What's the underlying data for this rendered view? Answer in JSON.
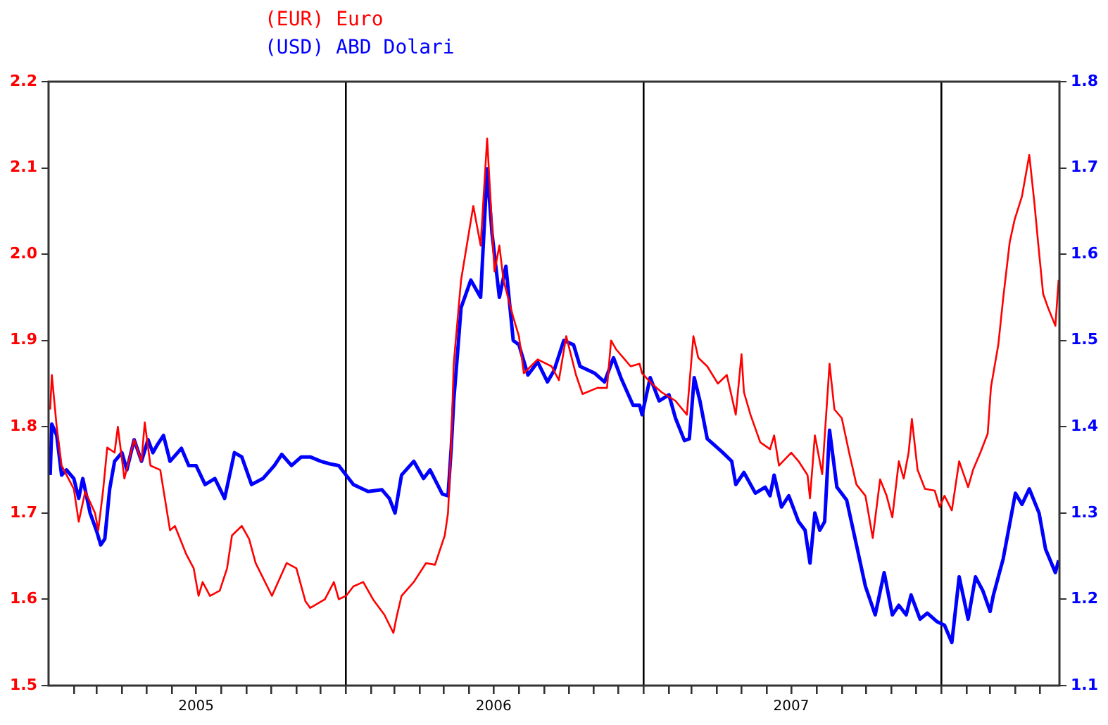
{
  "chart_data": {
    "type": "line",
    "legend": "top",
    "grid": "x",
    "marker": "none",
    "line_style": "solid",
    "xlim": [
      "2005-01-01",
      "2008-05-25"
    ],
    "xticks": [
      {
        "value": "2005-02",
        "label": null
      },
      {
        "value": "2005-03",
        "label": null
      },
      {
        "value": "2005-04",
        "label": null
      },
      {
        "value": "2005-05",
        "label": null
      },
      {
        "value": "2005-06",
        "label": null
      },
      {
        "value": "2005-07",
        "label": "2005"
      },
      {
        "value": "2005-08",
        "label": null
      },
      {
        "value": "2005-09",
        "label": null
      },
      {
        "value": "2005-10",
        "label": null
      },
      {
        "value": "2005-11",
        "label": null
      },
      {
        "value": "2005-12",
        "label": null
      },
      {
        "value": "2006-01",
        "label": null
      },
      {
        "value": "2006-02",
        "label": null
      },
      {
        "value": "2006-03",
        "label": null
      },
      {
        "value": "2006-04",
        "label": null
      },
      {
        "value": "2006-05",
        "label": null
      },
      {
        "value": "2006-06",
        "label": null
      },
      {
        "value": "2006-07",
        "label": "2006"
      },
      {
        "value": "2006-08",
        "label": null
      },
      {
        "value": "2006-09",
        "label": null
      },
      {
        "value": "2006-10",
        "label": null
      },
      {
        "value": "2006-11",
        "label": null
      },
      {
        "value": "2006-12",
        "label": null
      },
      {
        "value": "2007-01",
        "label": null
      },
      {
        "value": "2007-02",
        "label": null
      },
      {
        "value": "2007-03",
        "label": null
      },
      {
        "value": "2007-04",
        "label": null
      },
      {
        "value": "2007-05",
        "label": null
      },
      {
        "value": "2007-06",
        "label": null
      },
      {
        "value": "2007-07",
        "label": "2007"
      },
      {
        "value": "2007-08",
        "label": null
      },
      {
        "value": "2007-09",
        "label": null
      },
      {
        "value": "2007-10",
        "label": null
      },
      {
        "value": "2007-11",
        "label": null
      },
      {
        "value": "2007-12",
        "label": null
      },
      {
        "value": "2008-01",
        "label": null
      },
      {
        "value": "2008-02",
        "label": null
      },
      {
        "value": "2008-03",
        "label": null
      },
      {
        "value": "2008-04",
        "label": null
      },
      {
        "value": "2008-05",
        "label": null
      }
    ],
    "ylim": [
      1.5,
      2.2
    ],
    "yticks": [
      1.5,
      1.6,
      1.7,
      1.8,
      1.9,
      {
        "value": 2,
        "label": "2.0"
      },
      2.1,
      2.2
    ],
    "y2lim": [
      1.1,
      1.8
    ],
    "y2ticks": [
      1.1,
      1.2,
      1.3,
      1.4,
      1.5,
      1.6,
      1.7,
      1.8
    ],
    "series": [
      {
        "name": "(EUR) Euro",
        "color": "#ff0000",
        "x": [
          "2005-01-03",
          "2005-01-05",
          "2005-01-11",
          "2005-01-17",
          "2005-02-01",
          "2005-02-07",
          "2005-02-15",
          "2005-02-27",
          "2005-03-03",
          "2005-03-09",
          "2005-03-14",
          "2005-03-23",
          "2005-03-27",
          "2005-04-04",
          "2005-04-16",
          "2005-04-25",
          "2005-04-29",
          "2005-05-06",
          "2005-05-18",
          "2005-05-30",
          "2005-06-05",
          "2005-06-19",
          "2005-06-28",
          "2005-07-04",
          "2005-07-09",
          "2005-07-18",
          "2005-07-30",
          "2005-08-08",
          "2005-08-14",
          "2005-08-26",
          "2005-09-04",
          "2005-09-12",
          "2005-10-02",
          "2005-10-20",
          "2005-11-01",
          "2005-11-12",
          "2005-11-18",
          "2005-12-06",
          "2005-12-17",
          "2005-12-23",
          "2006-01-01",
          "2006-01-10",
          "2006-01-22",
          "2006-02-03",
          "2006-02-17",
          "2006-02-28",
          "2006-03-04",
          "2006-03-10",
          "2006-03-25",
          "2006-04-09",
          "2006-04-20",
          "2006-05-02",
          "2006-05-06",
          "2006-05-10",
          "2006-05-13",
          "2006-05-22",
          "2006-06-06",
          "2006-06-15",
          "2006-06-23",
          "2006-07-02",
          "2006-07-08",
          "2006-07-13",
          "2006-07-25",
          "2006-08-01",
          "2006-08-07",
          "2006-08-24",
          "2006-09-10",
          "2006-09-19",
          "2006-09-28",
          "2006-10-10",
          "2006-10-18",
          "2006-11-05",
          "2006-11-17",
          "2006-11-22",
          "2006-11-28",
          "2006-12-16",
          "2006-12-27",
          "2006-12-30",
          "2007-01-11",
          "2007-01-23",
          "2007-02-09",
          "2007-02-23",
          "2007-03-03",
          "2007-03-09",
          "2007-03-20",
          "2007-04-02",
          "2007-04-13",
          "2007-04-24",
          "2007-05-01",
          "2007-05-04",
          "2007-05-12",
          "2007-05-24",
          "2007-06-05",
          "2007-06-10",
          "2007-06-16",
          "2007-07-01",
          "2007-07-10",
          "2007-07-21",
          "2007-07-24",
          "2007-07-30",
          "2007-08-08",
          "2007-08-17",
          "2007-08-23",
          "2007-09-01",
          "2007-09-10",
          "2007-09-19",
          "2007-09-30",
          "2007-10-09",
          "2007-10-18",
          "2007-10-26",
          "2007-11-02",
          "2007-11-10",
          "2007-11-16",
          "2007-11-22",
          "2007-11-26",
          "2007-12-03",
          "2007-12-12",
          "2007-12-24",
          "2007-12-30",
          "2008-01-05",
          "2008-01-14",
          "2008-01-23",
          "2008-02-03",
          "2008-02-09",
          "2008-02-18",
          "2008-02-27",
          "2008-03-02",
          "2008-03-11",
          "2008-03-17",
          "2008-03-25",
          "2008-03-31",
          "2008-04-09",
          "2008-04-18",
          "2008-04-24",
          "2008-04-30",
          "2008-05-05",
          "2008-05-11",
          "2008-05-20",
          "2008-05-24"
        ],
        "values": [
          1.82,
          1.86,
          1.8,
          1.755,
          1.728,
          1.69,
          1.725,
          1.7,
          1.68,
          1.727,
          1.776,
          1.77,
          1.8,
          1.74,
          1.785,
          1.76,
          1.805,
          1.755,
          1.75,
          1.68,
          1.685,
          1.652,
          1.636,
          1.604,
          1.62,
          1.604,
          1.61,
          1.636,
          1.674,
          1.685,
          1.67,
          1.642,
          1.604,
          1.642,
          1.636,
          1.598,
          1.59,
          1.6,
          1.62,
          1.6,
          1.604,
          1.615,
          1.62,
          1.6,
          1.582,
          1.561,
          1.58,
          1.604,
          1.62,
          1.642,
          1.64,
          1.674,
          1.7,
          1.781,
          1.873,
          1.97,
          2.056,
          2.01,
          2.134,
          1.98,
          2.01,
          1.97,
          1.927,
          1.905,
          1.862,
          1.878,
          1.87,
          1.854,
          1.905,
          1.86,
          1.838,
          1.845,
          1.845,
          1.9,
          1.89,
          1.87,
          1.873,
          1.862,
          1.85,
          1.84,
          1.83,
          1.814,
          1.905,
          1.88,
          1.87,
          1.85,
          1.86,
          1.814,
          1.884,
          1.84,
          1.814,
          1.782,
          1.774,
          1.79,
          1.755,
          1.77,
          1.76,
          1.744,
          1.717,
          1.79,
          1.745,
          1.873,
          1.82,
          1.81,
          1.77,
          1.733,
          1.72,
          1.671,
          1.739,
          1.72,
          1.695,
          1.76,
          1.74,
          1.77,
          1.809,
          1.75,
          1.728,
          1.726,
          1.707,
          1.72,
          1.703,
          1.76,
          1.73,
          1.75,
          1.77,
          1.792,
          1.846,
          1.895,
          1.949,
          2.014,
          2.04,
          2.067,
          2.115,
          2.062,
          2.002,
          1.954,
          1.938,
          1.917,
          1.97
        ]
      },
      {
        "name": "(USD) ABD Dolari",
        "color": "#0000ff",
        "axis": "y2",
        "x": [
          "2005-01-03",
          "2005-01-05",
          "2005-01-11",
          "2005-01-17",
          "2005-01-23",
          "2005-02-01",
          "2005-02-07",
          "2005-02-12",
          "2005-02-21",
          "2005-03-01",
          "2005-03-06",
          "2005-03-11",
          "2005-03-17",
          "2005-03-23",
          "2005-04-01",
          "2005-04-07",
          "2005-04-16",
          "2005-04-25",
          "2005-05-03",
          "2005-05-09",
          "2005-05-15",
          "2005-05-22",
          "2005-05-30",
          "2005-06-13",
          "2005-06-22",
          "2005-07-01",
          "2005-07-12",
          "2005-07-24",
          "2005-08-05",
          "2005-08-17",
          "2005-08-26",
          "2005-09-07",
          "2005-09-21",
          "2005-10-05",
          "2005-10-14",
          "2005-10-26",
          "2005-11-07",
          "2005-11-18",
          "2005-12-01",
          "2005-12-12",
          "2005-12-23",
          "2006-01-01",
          "2006-01-10",
          "2006-01-28",
          "2006-02-14",
          "2006-02-23",
          "2006-03-02",
          "2006-03-10",
          "2006-03-25",
          "2006-04-06",
          "2006-04-14",
          "2006-04-29",
          "2006-05-06",
          "2006-05-10",
          "2006-05-13",
          "2006-05-18",
          "2006-05-22",
          "2006-06-03",
          "2006-06-15",
          "2006-06-23",
          "2006-06-29",
          "2006-07-08",
          "2006-07-16",
          "2006-07-25",
          "2006-08-01",
          "2006-08-12",
          "2006-08-24",
          "2006-09-05",
          "2006-09-13",
          "2006-09-25",
          "2006-10-07",
          "2006-10-15",
          "2006-11-02",
          "2006-11-14",
          "2006-11-25",
          "2006-12-04",
          "2006-12-19",
          "2006-12-27",
          "2006-12-30",
          "2007-01-09",
          "2007-01-20",
          "2007-02-01",
          "2007-02-09",
          "2007-02-20",
          "2007-02-26",
          "2007-03-04",
          "2007-03-11",
          "2007-03-20",
          "2007-04-07",
          "2007-04-19",
          "2007-04-24",
          "2007-05-04",
          "2007-05-18",
          "2007-05-30",
          "2007-06-05",
          "2007-06-10",
          "2007-06-19",
          "2007-06-28",
          "2007-07-10",
          "2007-07-18",
          "2007-07-24",
          "2007-07-30",
          "2007-08-05",
          "2007-08-11",
          "2007-08-17",
          "2007-08-26",
          "2007-09-07",
          "2007-09-19",
          "2007-09-30",
          "2007-10-12",
          "2007-10-23",
          "2007-11-02",
          "2007-11-10",
          "2007-11-19",
          "2007-11-25",
          "2007-12-06",
          "2007-12-15",
          "2007-12-27",
          "2008-01-05",
          "2008-01-14",
          "2008-01-23",
          "2008-02-03",
          "2008-02-12",
          "2008-02-21",
          "2008-03-01",
          "2008-03-05",
          "2008-03-17",
          "2008-04-01",
          "2008-04-09",
          "2008-04-18",
          "2008-04-30",
          "2008-05-08",
          "2008-05-20",
          "2008-05-24"
        ],
        "values": [
          1.344,
          1.403,
          1.39,
          1.344,
          1.35,
          1.34,
          1.317,
          1.34,
          1.3,
          1.279,
          1.263,
          1.27,
          1.328,
          1.36,
          1.37,
          1.35,
          1.385,
          1.36,
          1.385,
          1.37,
          1.38,
          1.39,
          1.36,
          1.375,
          1.355,
          1.355,
          1.333,
          1.34,
          1.317,
          1.37,
          1.365,
          1.333,
          1.34,
          1.355,
          1.368,
          1.355,
          1.365,
          1.365,
          1.36,
          1.357,
          1.355,
          1.344,
          1.333,
          1.325,
          1.327,
          1.317,
          1.3,
          1.344,
          1.36,
          1.34,
          1.35,
          1.322,
          1.32,
          1.376,
          1.43,
          1.489,
          1.538,
          1.57,
          1.55,
          1.699,
          1.624,
          1.55,
          1.586,
          1.5,
          1.495,
          1.46,
          1.475,
          1.452,
          1.465,
          1.5,
          1.495,
          1.47,
          1.462,
          1.452,
          1.48,
          1.457,
          1.425,
          1.425,
          1.414,
          1.457,
          1.43,
          1.437,
          1.41,
          1.384,
          1.386,
          1.457,
          1.43,
          1.386,
          1.371,
          1.36,
          1.333,
          1.347,
          1.323,
          1.33,
          1.32,
          1.344,
          1.307,
          1.32,
          1.29,
          1.28,
          1.242,
          1.3,
          1.28,
          1.29,
          1.396,
          1.33,
          1.315,
          1.263,
          1.215,
          1.182,
          1.231,
          1.182,
          1.193,
          1.182,
          1.205,
          1.177,
          1.184,
          1.174,
          1.17,
          1.15,
          1.226,
          1.177,
          1.226,
          1.21,
          1.186,
          1.205,
          1.247,
          1.323,
          1.31,
          1.328,
          1.3,
          1.258,
          1.231,
          1.245
        ]
      }
    ]
  }
}
